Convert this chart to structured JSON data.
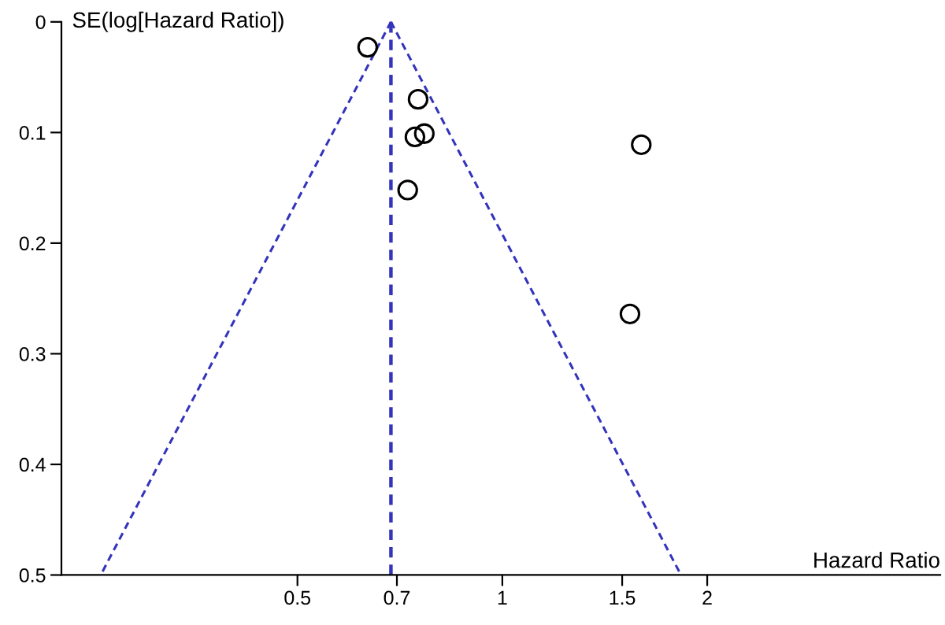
{
  "chart_data": {
    "type": "scatter",
    "xlabel": "Hazard Ratio",
    "ylabel": "SE(log[Hazard Ratio])",
    "log": "x",
    "xlim": [
      0.225,
      4.4
    ],
    "xticks": [
      0.5,
      0.7,
      1,
      1.5,
      2
    ],
    "ylim": [
      0.5,
      0
    ],
    "yticks": [
      0,
      0.1,
      0.2,
      0.3,
      0.4,
      0.5
    ],
    "grid": false,
    "legend": false,
    "series": [
      {
        "color": "#000000",
        "marker": "circle",
        "x": [
          0.634,
          0.752,
          0.744,
          0.768,
          0.726,
          1.6,
          1.54
        ],
        "values": [
          0.023,
          0.07,
          0.104,
          0.101,
          0.152,
          0.111,
          0.264
        ]
      },
      {
        "type": "line",
        "color": "#3333bb",
        "marker": "none",
        "line_style": "dashed",
        "x": [
          0.686,
          0.257
        ],
        "values": [
          0,
          0.5
        ]
      },
      {
        "type": "line",
        "color": "#3333bb",
        "marker": "none",
        "line_style": "dashed",
        "x": [
          0.686,
          1.83
        ],
        "values": [
          0,
          0.5
        ]
      }
    ],
    "ref_lines": [
      {
        "axis": "x",
        "value": 0.686,
        "color": "#3333bb",
        "line_style": "dashed"
      }
    ]
  }
}
